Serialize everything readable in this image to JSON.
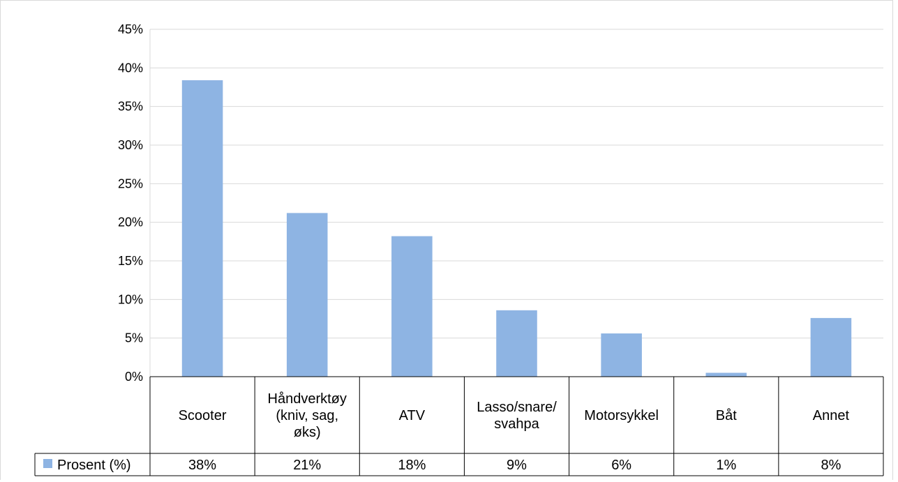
{
  "chart_data": {
    "type": "bar",
    "categories": [
      [
        "Scooter"
      ],
      [
        "Håndverktøy",
        "(kniv, sag,",
        "øks)"
      ],
      [
        "ATV"
      ],
      [
        "Lasso/snare/",
        "svahpa"
      ],
      [
        "Motorsykkel"
      ],
      [
        "Båt"
      ],
      [
        "Annet"
      ]
    ],
    "series": [
      {
        "name": "Prosent (%)",
        "values": [
          38.4,
          21.2,
          18.2,
          8.6,
          5.6,
          0.5,
          7.6
        ],
        "table_labels": [
          "38%",
          "21%",
          "18%",
          "9%",
          "6%",
          "1%",
          "8%"
        ],
        "color": "#8eb4e3"
      }
    ],
    "ylim": [
      0,
      45
    ],
    "yticks": [
      0,
      5,
      10,
      15,
      20,
      25,
      30,
      35,
      40,
      45
    ],
    "ytick_suffix": "%",
    "grid": true,
    "legend": "data-table"
  },
  "colors": {
    "bar": "#8eb4e3",
    "grid": "#d9d9d9",
    "table_border": "#000000"
  }
}
